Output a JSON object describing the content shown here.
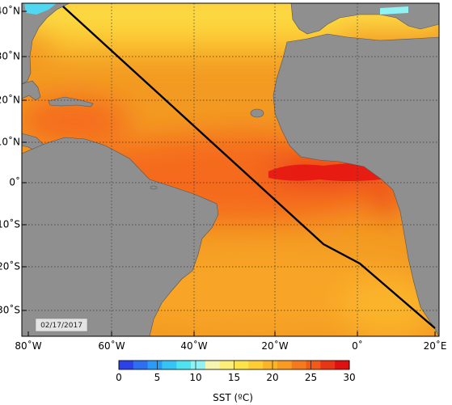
{
  "map": {
    "lon_labels": [
      "80˚W",
      "60˚W",
      "40˚W",
      "20˚W",
      "0˚",
      "20˚E"
    ],
    "lat_labels": [
      "40˚N",
      "30˚N",
      "20˚N",
      "10˚N",
      "0˚",
      "10˚S",
      "20˚S",
      "30˚S"
    ],
    "date_stamp": "02/17/2017",
    "colors": {
      "land": "#8f8f8f",
      "track": "#000000",
      "grid": "#333333"
    }
  },
  "colorbar": {
    "title": "SST (ºC)",
    "tick_labels": [
      "0",
      "5",
      "10",
      "15",
      "20",
      "25",
      "30"
    ],
    "colors": [
      "#2a42e6",
      "#2d6ff0",
      "#2b9cf5",
      "#36c3f5",
      "#4fe3f2",
      "#8ff3f3",
      "#f7f4b0",
      "#fbef7a",
      "#fde34a",
      "#fcce34",
      "#fbb42a",
      "#f99a22",
      "#f67a1d",
      "#f25a18",
      "#ea3514",
      "#e01010"
    ]
  }
}
